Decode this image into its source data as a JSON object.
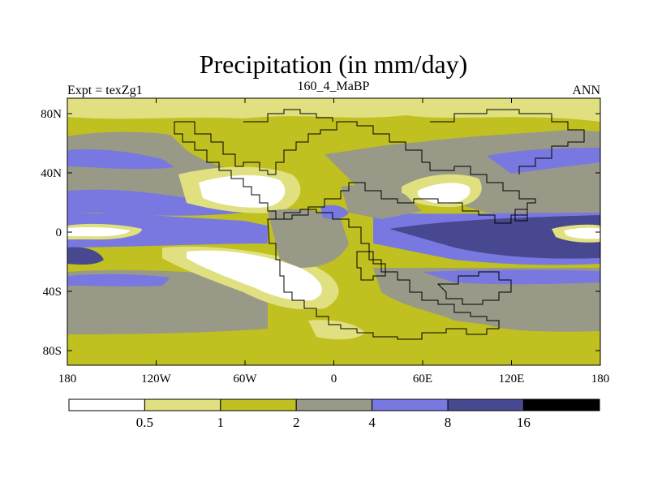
{
  "title": "Precipitation (in mm/day)",
  "subtitle_left": "Expt = texZg1",
  "subtitle_center": "160_4_MaBP",
  "subtitle_right": "ANN",
  "map": {
    "lon_ticks": [
      "180",
      "120W",
      "60W",
      "0",
      "60E",
      "120E",
      "180"
    ],
    "lat_ticks": [
      "80N",
      "40N",
      "0",
      "40S",
      "80S"
    ]
  },
  "colorbar": {
    "thresholds": [
      "0.5",
      "1",
      "2",
      "4",
      "8",
      "16"
    ],
    "colors": [
      "#ffffff",
      "#e0e080",
      "#c0c020",
      "#999988",
      "#7878e0",
      "#484890",
      "#000000"
    ]
  },
  "palette": {
    "white": "#ffffff",
    "pale_yellow": "#e0e080",
    "olive": "#c0c020",
    "gray": "#999988",
    "blue": "#7878e0",
    "dark_blue": "#484890",
    "outline": "#000000"
  }
}
